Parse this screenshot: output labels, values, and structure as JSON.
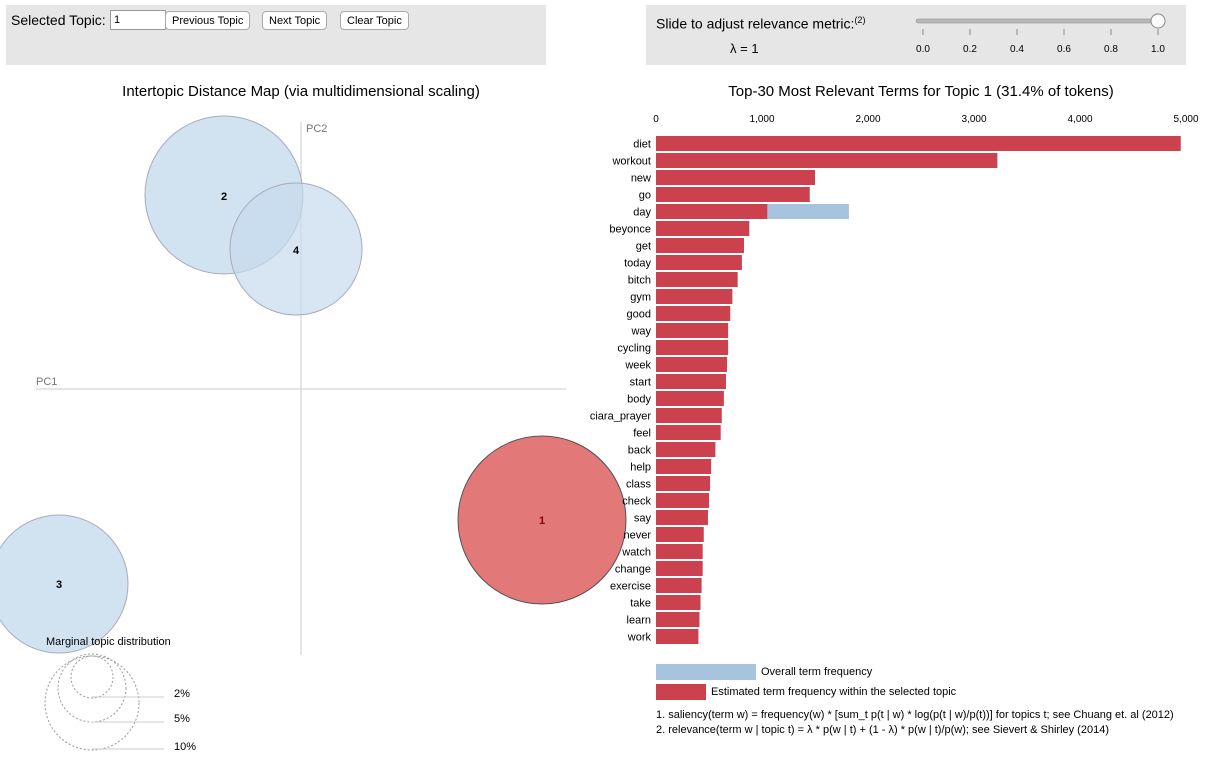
{
  "controls": {
    "selected_topic_label": "Selected Topic:",
    "selected_topic_value": "1",
    "previous_label": "Previous Topic",
    "next_label": "Next Topic",
    "clear_label": "Clear Topic"
  },
  "slider": {
    "title": "Slide to adjust relevance metric:",
    "footnote": "(2)",
    "lambda_text": "λ = 1",
    "value": 1.0,
    "ticks": [
      "0.0",
      "0.2",
      "0.4",
      "0.6",
      "0.8",
      "1.0"
    ]
  },
  "map": {
    "title": "Intertopic Distance Map (via multidimensional scaling)",
    "pc1_label": "PC1",
    "pc2_label": "PC2",
    "topics": [
      {
        "label": "1",
        "selected": true
      },
      {
        "label": "2",
        "selected": false
      },
      {
        "label": "3",
        "selected": false
      },
      {
        "label": "4",
        "selected": false
      }
    ],
    "marginal": {
      "title": "Marginal topic distribution",
      "labels": [
        "2%",
        "5%",
        "10%"
      ]
    }
  },
  "colors": {
    "selected_topic": "#e27878",
    "other_topic": "#c6dbec",
    "estimated_bar": "#cc414e",
    "overall_bar": "#a6c4dd"
  },
  "chart_data": {
    "type": "bar",
    "title": "Top-30 Most Relevant Terms for Topic 1 (31.4% of tokens)",
    "xlim": [
      0,
      5000
    ],
    "x_ticks": [
      "0",
      "1,000",
      "2,000",
      "3,000",
      "4,000",
      "5,000"
    ],
    "categories": [
      "diet",
      "workout",
      "new",
      "go",
      "day",
      "beyonce",
      "get",
      "today",
      "bitch",
      "gym",
      "good",
      "way",
      "cycling",
      "week",
      "start",
      "body",
      "ciara_prayer",
      "feel",
      "back",
      "help",
      "class",
      "check",
      "say",
      "never",
      "watch",
      "change",
      "exercise",
      "take",
      "learn",
      "work"
    ],
    "series": [
      {
        "name": "Overall term frequency",
        "values": [
          4950,
          3220,
          1500,
          1450,
          1820,
          880,
          830,
          810,
          770,
          720,
          700,
          680,
          680,
          670,
          660,
          640,
          620,
          610,
          560,
          520,
          510,
          500,
          490,
          450,
          440,
          440,
          430,
          420,
          410,
          400
        ]
      },
      {
        "name": "Estimated term frequency within the selected topic",
        "values": [
          4950,
          3220,
          1500,
          1450,
          1050,
          880,
          830,
          810,
          770,
          720,
          700,
          680,
          680,
          670,
          660,
          640,
          620,
          610,
          560,
          520,
          510,
          500,
          490,
          450,
          440,
          440,
          430,
          420,
          410,
          400
        ]
      }
    ]
  },
  "legend": {
    "overall": "Overall term frequency",
    "estimated": "Estimated term frequency within the selected topic"
  },
  "notes": {
    "saliency": "1. saliency(term w) = frequency(w) * [sum_t p(t | w) * log(p(t | w)/p(t))] for topics t; see Chuang et. al (2012)",
    "relevance": "2. relevance(term w | topic t) = λ * p(w | t) + (1 - λ) * p(w | t)/p(w); see Sievert & Shirley (2014)"
  }
}
